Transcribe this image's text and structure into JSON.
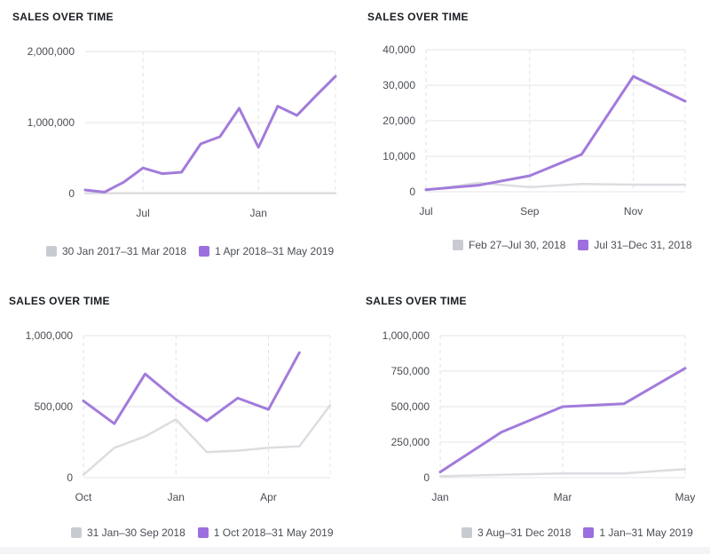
{
  "colors": {
    "current": "#a27bdb",
    "previous": "#dcdde1",
    "current_swatch": "#9c6ede",
    "previous_swatch": "#c8ccd2"
  },
  "chart_data": [
    {
      "type": "line",
      "title": "SALES OVER TIME",
      "ylim": [
        0,
        2000000
      ],
      "yticks": [
        0,
        1000000,
        2000000
      ],
      "ytick_labels": [
        "0",
        "1,000,000",
        "2,000,000"
      ],
      "xlim": [
        0,
        13
      ],
      "xticks": [
        3,
        9
      ],
      "xtick_labels": [
        "Jul",
        "Jan"
      ],
      "legend": [
        "30 Jan 2017–31 Mar 2018",
        "1 Apr 2018–31 May 2019"
      ],
      "series": [
        {
          "name": "30 Jan 2017–31 Mar 2018",
          "x": [
            0,
            13
          ],
          "values": [
            5000,
            5000
          ]
        },
        {
          "name": "1 Apr 2018–31 May 2019",
          "x": [
            0,
            1,
            2,
            3,
            4,
            5,
            6,
            7,
            8,
            9,
            10,
            11,
            12,
            13
          ],
          "values": [
            50000,
            20000,
            160000,
            360000,
            280000,
            300000,
            700000,
            800000,
            1200000,
            650000,
            1230000,
            1100000,
            1380000,
            1650000
          ]
        }
      ]
    },
    {
      "type": "line",
      "title": "SALES OVER TIME",
      "ylim": [
        0,
        40000
      ],
      "yticks": [
        0,
        10000,
        20000,
        30000,
        40000
      ],
      "ytick_labels": [
        "0",
        "10,000",
        "20,000",
        "30,000",
        "40,000"
      ],
      "xlim": [
        0,
        5
      ],
      "xticks": [
        0,
        2,
        4
      ],
      "xtick_labels": [
        "Jul",
        "Sep",
        "Nov"
      ],
      "legend": [
        "Feb 27–Jul 30, 2018",
        "Jul 31–Dec 31, 2018"
      ],
      "series": [
        {
          "name": "Feb 27–Jul 30, 2018",
          "x": [
            0,
            1,
            2,
            3,
            4,
            5
          ],
          "values": [
            400,
            2500,
            1300,
            2200,
            2000,
            2000
          ]
        },
        {
          "name": "Jul 31–Dec 31, 2018",
          "x": [
            0,
            1,
            2,
            3,
            4,
            5
          ],
          "values": [
            600,
            1800,
            4500,
            10500,
            32500,
            25500
          ]
        }
      ]
    },
    {
      "type": "line",
      "title": "SALES OVER TIME",
      "ylim": [
        0,
        1000000
      ],
      "yticks": [
        0,
        500000,
        1000000
      ],
      "ytick_labels": [
        "0",
        "500,000",
        "1,000,000"
      ],
      "xlim": [
        0,
        8
      ],
      "xticks": [
        0,
        3,
        6
      ],
      "xtick_labels": [
        "Oct",
        "Jan",
        "Apr"
      ],
      "legend": [
        "31 Jan–30 Sep 2018",
        "1 Oct 2018–31 May 2019"
      ],
      "series": [
        {
          "name": "31 Jan–30 Sep 2018",
          "x": [
            0,
            1,
            2,
            3,
            4,
            5,
            6,
            7,
            8
          ],
          "values": [
            20000,
            210000,
            290000,
            410000,
            180000,
            190000,
            210000,
            220000,
            510000
          ]
        },
        {
          "name": "1 Oct 2018–31 May 2019",
          "x": [
            0,
            1,
            2,
            3,
            4,
            5,
            6,
            7
          ],
          "values": [
            540000,
            380000,
            730000,
            550000,
            400000,
            560000,
            480000,
            880000
          ]
        }
      ]
    },
    {
      "type": "line",
      "title": "SALES OVER TIME",
      "ylim": [
        0,
        1000000
      ],
      "yticks": [
        0,
        250000,
        500000,
        750000,
        1000000
      ],
      "ytick_labels": [
        "0",
        "250,000",
        "500,000",
        "750,000",
        "1,000,000"
      ],
      "xlim": [
        0,
        4
      ],
      "xticks": [
        0,
        2,
        4
      ],
      "xtick_labels": [
        "Jan",
        "Mar",
        "May"
      ],
      "legend": [
        "3 Aug–31 Dec 2018",
        "1 Jan–31 May 2019"
      ],
      "series": [
        {
          "name": "3 Aug–31 Dec 2018",
          "x": [
            0,
            1,
            2,
            3,
            4
          ],
          "values": [
            10000,
            20000,
            30000,
            30000,
            60000
          ]
        },
        {
          "name": "1 Jan–31 May 2019",
          "x": [
            0,
            1,
            2,
            3,
            4
          ],
          "values": [
            40000,
            320000,
            500000,
            520000,
            770000
          ]
        }
      ]
    }
  ]
}
